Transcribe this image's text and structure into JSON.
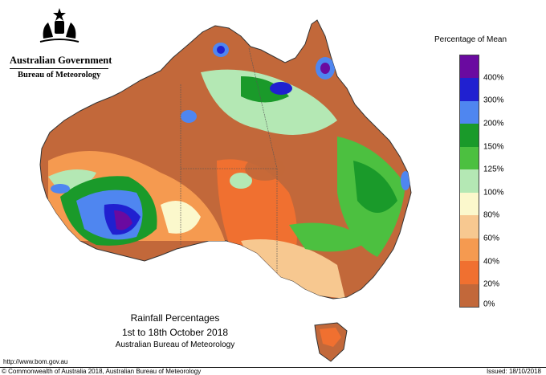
{
  "header": {
    "government_name": "Australian Government",
    "bureau_name": "Bureau of Meteorology",
    "crest_icon": "coat-of-arms"
  },
  "legend": {
    "title": "Percentage of Mean",
    "items": [
      {
        "label": "400%",
        "color": "#6a0aa0"
      },
      {
        "label": "300%",
        "color": "#2020d0"
      },
      {
        "label": "200%",
        "color": "#4f86f0"
      },
      {
        "label": "150%",
        "color": "#1a9a2a"
      },
      {
        "label": "125%",
        "color": "#4cc040"
      },
      {
        "label": "100%",
        "color": "#b4e8b4"
      },
      {
        "label": "80%",
        "color": "#fbf8cc"
      },
      {
        "label": "60%",
        "color": "#f7c890"
      },
      {
        "label": "40%",
        "color": "#f59a50"
      },
      {
        "label": "20%",
        "color": "#f07030"
      },
      {
        "label": "0%",
        "color": "#c2683a"
      }
    ]
  },
  "caption": {
    "title": "Rainfall Percentages",
    "period": "1st to 18th October 2018",
    "source": "Australian Bureau of Meteorology"
  },
  "footer": {
    "url": "http://www.bom.gov.au",
    "copyright": "© Commonwealth of Australia 2018, Australian Bureau of Meteorology",
    "issued": "Issued: 18/10/2018"
  }
}
